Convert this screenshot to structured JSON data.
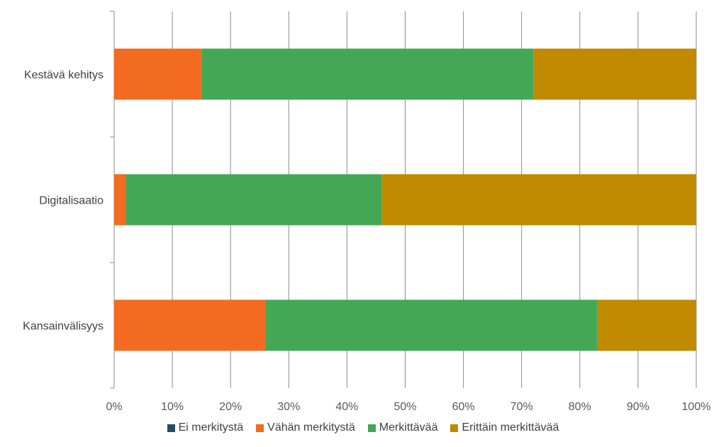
{
  "chart_data": {
    "type": "bar",
    "orientation": "horizontal",
    "stacked": "percent",
    "categories": [
      "Kestävä kehitys",
      "Digitalisaatio",
      "Kansainvälisyys"
    ],
    "series": [
      {
        "name": "Ei merkitystä",
        "color": "#1f4e5f",
        "values": [
          0,
          0,
          0
        ]
      },
      {
        "name": "Vähän merkitystä",
        "color": "#f26b21",
        "values": [
          15,
          2,
          26
        ]
      },
      {
        "name": "Merkittävää",
        "color": "#43a856",
        "values": [
          57,
          44,
          57
        ]
      },
      {
        "name": "Erittäin merkittävää",
        "color": "#bf8a00",
        "values": [
          28,
          54,
          17
        ]
      }
    ],
    "xlim": [
      0,
      100
    ],
    "x_ticks": [
      "0%",
      "10%",
      "20%",
      "30%",
      "40%",
      "50%",
      "60%",
      "70%",
      "80%",
      "90%",
      "100%"
    ],
    "grid": true,
    "legend_position": "bottom"
  }
}
